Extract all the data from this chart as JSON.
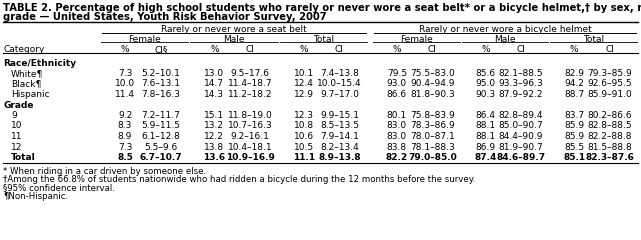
{
  "title_line1": "TABLE 2. Percentage of high school students who rarely or never wore a seat belt* or a bicycle helmet,† by sex, race/ethnicity, and",
  "title_line2": "grade — United States, Youth Risk Behavior Survey, 2007",
  "col_header_l1_left": "Rarely or never wore a seat belt",
  "col_header_l1_right": "Rarely or never wore a bicycle helmet",
  "col_header_l2": [
    "Female",
    "Male",
    "Total",
    "Female",
    "Male",
    "Total"
  ],
  "col_header_l3": [
    "%",
    "CI§",
    "%",
    "CI",
    "%",
    "CI",
    "%",
    "CI",
    "%",
    "CI",
    "%",
    "CI"
  ],
  "row_labels": [
    "Race/Ethnicity",
    "White¶",
    "Black¶",
    "Hispanic",
    "Grade",
    "9",
    "10",
    "11",
    "12",
    "Total"
  ],
  "is_section_header": [
    true,
    false,
    false,
    false,
    true,
    false,
    false,
    false,
    false,
    false
  ],
  "is_bold": [
    false,
    false,
    false,
    false,
    false,
    false,
    false,
    false,
    false,
    true
  ],
  "data": [
    [
      null,
      null,
      null,
      null,
      null,
      null,
      null,
      null,
      null,
      null,
      null,
      null
    ],
    [
      "7.3",
      "5.2–10.1",
      "13.0",
      "9.5–17.6",
      "10.1",
      "7.4–13.8",
      "79.5",
      "75.5–83.0",
      "85.6",
      "82.1–88.5",
      "82.9",
      "79.3–85.9"
    ],
    [
      "10.0",
      "7.6–13.1",
      "14.7",
      "11.4–18.7",
      "12.4",
      "10.0–15.4",
      "93.0",
      "90.4–94.9",
      "95.0",
      "93.3–96.3",
      "94.2",
      "92.6–95.5"
    ],
    [
      "11.4",
      "7.8–16.3",
      "14.3",
      "11.2–18.2",
      "12.9",
      "9.7–17.0",
      "86.6",
      "81.8–90.3",
      "90.3",
      "87.9–92.2",
      "88.7",
      "85.9–91.0"
    ],
    [
      null,
      null,
      null,
      null,
      null,
      null,
      null,
      null,
      null,
      null,
      null,
      null
    ],
    [
      "9.2",
      "7.2–11.7",
      "15.1",
      "11.8–19.0",
      "12.3",
      "9.9–15.1",
      "80.1",
      "75.8–83.9",
      "86.4",
      "82.8–89.4",
      "83.7",
      "80.2–86.6"
    ],
    [
      "8.3",
      "5.9–11.5",
      "13.2",
      "10.7–16.3",
      "10.8",
      "8.5–13.5",
      "83.0",
      "78.3–86.9",
      "88.1",
      "85.0–90.7",
      "85.9",
      "82.8–88.5"
    ],
    [
      "8.9",
      "6.1–12.8",
      "12.2",
      "9.2–16.1",
      "10.6",
      "7.9–14.1",
      "83.0",
      "78.0–87.1",
      "88.1",
      "84.4–90.9",
      "85.9",
      "82.2–88.8"
    ],
    [
      "7.3",
      "5.5–9.6",
      "13.8",
      "10.4–18.1",
      "10.5",
      "8.2–13.4",
      "83.8",
      "78.1–88.3",
      "86.9",
      "81.9–90.7",
      "85.5",
      "81.5–88.8"
    ],
    [
      "8.5",
      "6.7–10.7",
      "13.6",
      "10.9–16.9",
      "11.1",
      "8.9–13.8",
      "82.2",
      "79.0–85.0",
      "87.4",
      "84.6–89.7",
      "85.1",
      "82.3–87.6"
    ]
  ],
  "footnotes": [
    "* When riding in a car driven by someone else.",
    "†Among the 66.8% of students nationwide who had ridden a bicycle during the 12 months before the survey.",
    "§95% confidence interval.",
    "¶Non-Hispanic."
  ],
  "bg_color": "#ffffff",
  "font_size": 6.5,
  "title_font_size": 7.2
}
